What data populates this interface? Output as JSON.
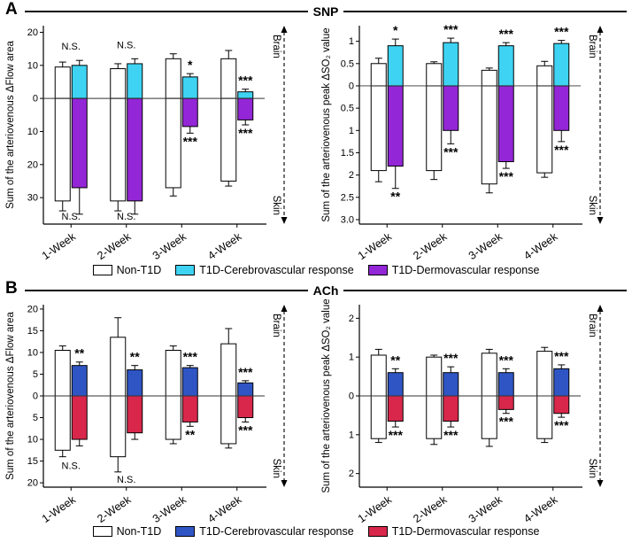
{
  "panels": [
    {
      "label": "A",
      "title": "SNP",
      "legend": [
        {
          "label": "Non-T1D",
          "color": "#ffffff"
        },
        {
          "label": "T1D-Cerebrovascular response",
          "color": "#3ed3f2"
        },
        {
          "label": "T1D-Dermovascular response",
          "color": "#9326d6"
        }
      ]
    },
    {
      "label": "B",
      "title": "ACh",
      "legend": [
        {
          "label": "Non-T1D",
          "color": "#ffffff"
        },
        {
          "label": "T1D-Cerebrovascular response",
          "color": "#2f55c4"
        },
        {
          "label": "T1D-Dermovascular response",
          "color": "#d8274b"
        }
      ]
    }
  ],
  "chart_data": [
    {
      "type": "bar",
      "panel": "A",
      "title": "SNP",
      "ylabel": "Sum of the arteriovenous ΔFlow area",
      "categories": [
        "1-Week",
        "2-Week",
        "3-Week",
        "4-Week"
      ],
      "axis": {
        "ymax": 22,
        "ymin": -38,
        "ticks": [
          20,
          10,
          0,
          -10,
          -20,
          -30
        ],
        "tick_labels": [
          "20",
          "10",
          "0",
          "10",
          "20",
          "30"
        ]
      },
      "direction_labels": {
        "up": "Brain",
        "down": "Skin"
      },
      "series": [
        {
          "name": "Non-T1D",
          "direction": "up",
          "color": "#ffffff",
          "values": [
            9.5,
            9,
            12,
            12
          ],
          "errors": [
            1.5,
            1.5,
            1.5,
            2.5
          ]
        },
        {
          "name": "T1D-Cerebrovascular response",
          "direction": "up",
          "color": "#3ed3f2",
          "values": [
            10,
            10.5,
            6.5,
            2
          ],
          "errors": [
            1.5,
            1.5,
            1,
            0.8
          ]
        },
        {
          "name": "Non-T1D",
          "direction": "down",
          "color": "#ffffff",
          "values": [
            31,
            31,
            27,
            25
          ],
          "errors": [
            3,
            3,
            2.5,
            1.5
          ]
        },
        {
          "name": "T1D-Dermovascular response",
          "direction": "down",
          "color": "#9326d6",
          "values": [
            27,
            31,
            8.5,
            6.5
          ],
          "errors": [
            8,
            4,
            2,
            1.5
          ]
        }
      ],
      "significance": {
        "up": [
          "N.S.",
          "N.S.",
          "*",
          "***"
        ],
        "down": [
          "N.S.",
          "N.S.",
          "***",
          "***"
        ]
      }
    },
    {
      "type": "bar",
      "panel": "A",
      "title": "SNP",
      "ylabel": "Sum of the arteriovenous peak ΔSO₂  value",
      "categories": [
        "1-Week",
        "2-Week",
        "3-Week",
        "4-Week"
      ],
      "axis": {
        "ymax": 1.35,
        "ymin": -3.1,
        "ticks": [
          1,
          0.5,
          0,
          -0.5,
          -1,
          -1.5,
          -2,
          -2.5,
          -3
        ],
        "tick_labels": [
          "1",
          "0.5",
          "0",
          "0.5",
          "1",
          "1.5",
          "2",
          "2.5",
          "3.0"
        ]
      },
      "direction_labels": {
        "up": "Brain",
        "down": "Skin"
      },
      "series": [
        {
          "name": "Non-T1D",
          "direction": "up",
          "color": "#ffffff",
          "values": [
            0.5,
            0.5,
            0.35,
            0.45
          ],
          "errors": [
            0.12,
            0.04,
            0.05,
            0.1
          ]
        },
        {
          "name": "T1D-Cerebrovascular response",
          "direction": "up",
          "color": "#3ed3f2",
          "values": [
            0.9,
            0.97,
            0.9,
            0.95
          ],
          "errors": [
            0.15,
            0.1,
            0.07,
            0.07
          ]
        },
        {
          "name": "Non-T1D",
          "direction": "down",
          "color": "#ffffff",
          "values": [
            1.9,
            1.9,
            2.2,
            1.95
          ],
          "errors": [
            0.25,
            0.2,
            0.2,
            0.1
          ]
        },
        {
          "name": "T1D-Dermovascular response",
          "direction": "down",
          "color": "#9326d6",
          "values": [
            1.8,
            1.0,
            1.7,
            1.0
          ],
          "errors": [
            0.5,
            0.3,
            0.15,
            0.25
          ]
        }
      ],
      "significance": {
        "up": [
          "*",
          "***",
          "***",
          "***"
        ],
        "down": [
          "**",
          "***",
          "***",
          "***"
        ]
      }
    },
    {
      "type": "bar",
      "panel": "B",
      "title": "ACh",
      "ylabel": "Sum of the arteriovenous ΔFlow area",
      "categories": [
        "1-Week",
        "2-Week",
        "3-Week",
        "4-Week"
      ],
      "axis": {
        "ymax": 21,
        "ymin": -21,
        "ticks": [
          20,
          15,
          10,
          5,
          0,
          -5,
          -10,
          -15,
          -20
        ],
        "tick_labels": [
          "20",
          "15",
          "10",
          "5",
          "0",
          "5",
          "10",
          "15",
          "20"
        ]
      },
      "direction_labels": {
        "up": "Brain",
        "down": "Skin"
      },
      "series": [
        {
          "name": "Non-T1D",
          "direction": "up",
          "color": "#ffffff",
          "values": [
            10.5,
            13.5,
            10.5,
            12
          ],
          "errors": [
            1,
            4.5,
            1,
            3.5
          ]
        },
        {
          "name": "T1D-Cerebrovascular response",
          "direction": "up",
          "color": "#2f55c4",
          "values": [
            7,
            6,
            6.5,
            3
          ],
          "errors": [
            0.8,
            1,
            0.5,
            0.5
          ]
        },
        {
          "name": "Non-T1D",
          "direction": "down",
          "color": "#ffffff",
          "values": [
            12.5,
            14,
            10,
            11
          ],
          "errors": [
            1.5,
            3.5,
            1,
            1
          ]
        },
        {
          "name": "T1D-Dermovascular response",
          "direction": "down",
          "color": "#d8274b",
          "values": [
            10,
            8.5,
            6,
            5
          ],
          "errors": [
            1.5,
            1.5,
            1,
            1
          ]
        }
      ],
      "significance": {
        "up": [
          "**",
          "**",
          "***",
          "***"
        ],
        "down": [
          "N.S.",
          "N.S.",
          "**",
          "***"
        ]
      }
    },
    {
      "type": "bar",
      "panel": "B",
      "title": "ACh",
      "ylabel": "Sum of the arteriovenous peak ΔSO₂  value",
      "categories": [
        "1-Week",
        "2-Week",
        "3-Week",
        "4-Week"
      ],
      "axis": {
        "ymax": 2.35,
        "ymin": -2.35,
        "ticks": [
          2,
          1,
          0,
          -1,
          -2
        ],
        "tick_labels": [
          "2",
          "1",
          "0",
          "1",
          "2"
        ]
      },
      "direction_labels": {
        "up": "Brain",
        "down": "Skin"
      },
      "series": [
        {
          "name": "Non-T1D",
          "direction": "up",
          "color": "#ffffff",
          "values": [
            1.05,
            1.0,
            1.1,
            1.15
          ],
          "errors": [
            0.15,
            0.05,
            0.1,
            0.1
          ]
        },
        {
          "name": "T1D-Cerebrovascular response",
          "direction": "up",
          "color": "#2f55c4",
          "values": [
            0.6,
            0.6,
            0.6,
            0.7
          ],
          "errors": [
            0.1,
            0.15,
            0.1,
            0.1
          ]
        },
        {
          "name": "Non-T1D",
          "direction": "down",
          "color": "#ffffff",
          "values": [
            1.1,
            1.1,
            1.1,
            1.1
          ],
          "errors": [
            0.1,
            0.15,
            0.2,
            0.1
          ]
        },
        {
          "name": "T1D-Dermovascular response",
          "direction": "down",
          "color": "#d8274b",
          "values": [
            0.65,
            0.65,
            0.35,
            0.45
          ],
          "errors": [
            0.15,
            0.15,
            0.1,
            0.1
          ]
        }
      ],
      "significance": {
        "up": [
          "**",
          "***",
          "***",
          "***"
        ],
        "down": [
          "***",
          "***",
          "***",
          "***"
        ]
      }
    }
  ]
}
